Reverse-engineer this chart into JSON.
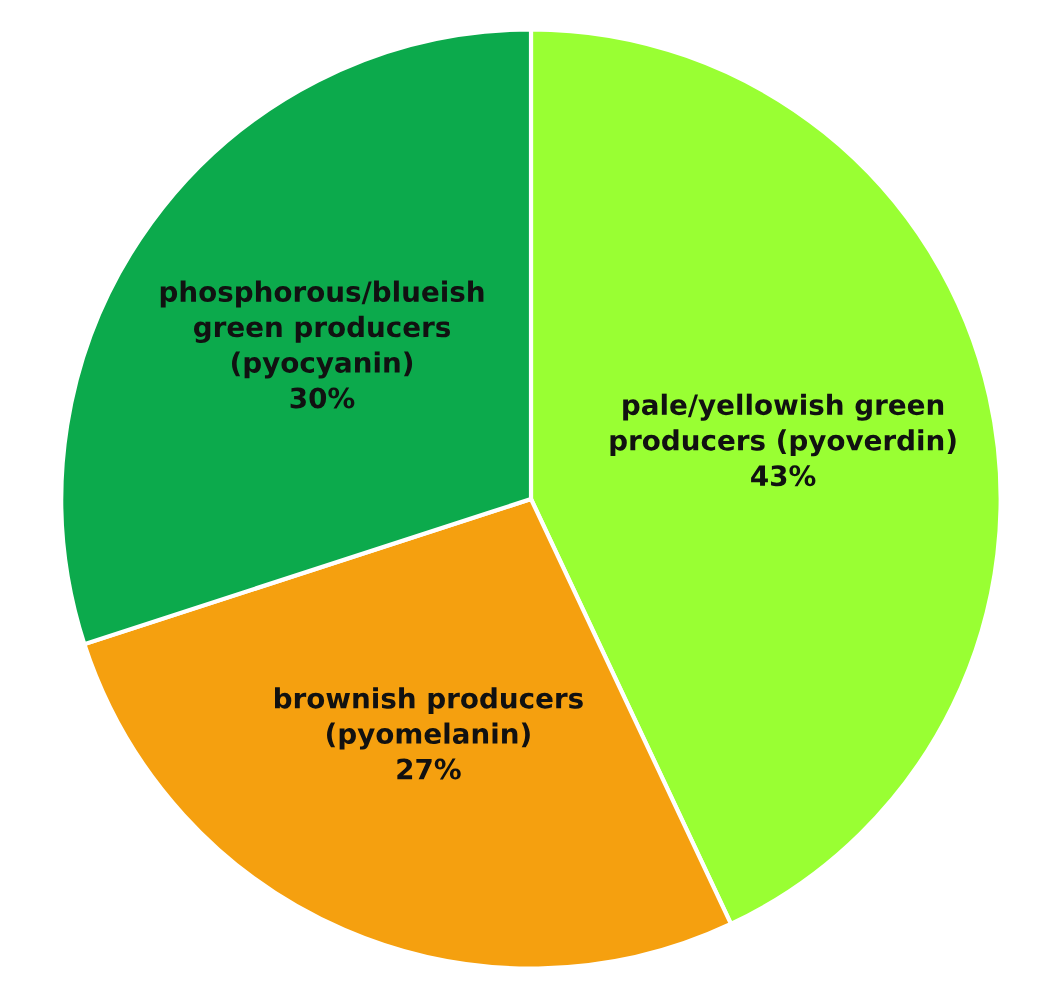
{
  "chart_data": {
    "type": "pie",
    "categories": [
      "pale/yellowish green\nproducers (pyoverdin)",
      "brownish producers\n(pyomelanin)",
      "phosphorous/blueish\ngreen producers\n(pyocyanin)"
    ],
    "values": [
      43,
      27,
      30
    ],
    "value_labels": [
      "43%",
      "27%",
      "30%"
    ],
    "colors": [
      "#99ff33",
      "#f5a00f",
      "#0caa4c"
    ]
  }
}
